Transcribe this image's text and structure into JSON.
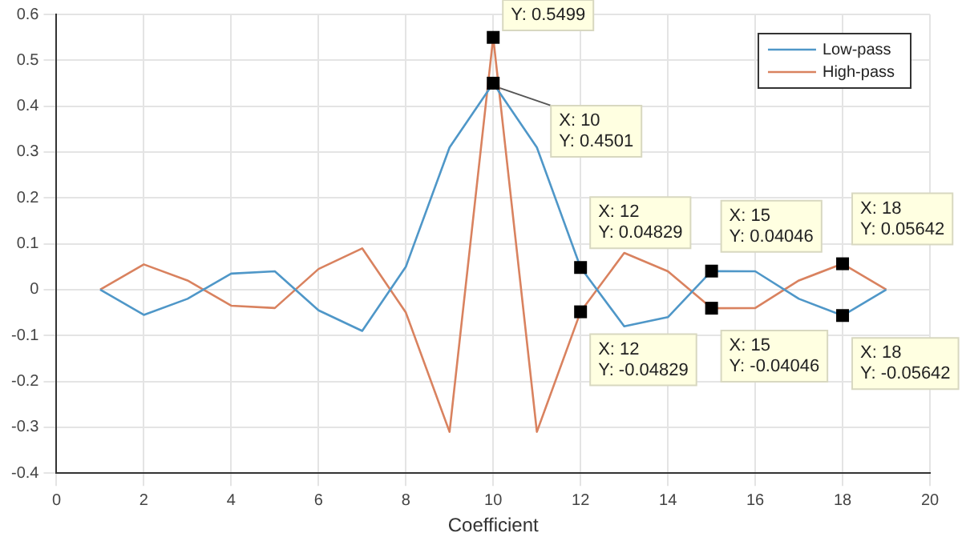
{
  "chart_data": {
    "type": "line",
    "xlabel": "Coefficient",
    "x": [
      1,
      2,
      3,
      4,
      5,
      6,
      7,
      8,
      9,
      10,
      11,
      12,
      13,
      14,
      15,
      16,
      17,
      18,
      19
    ],
    "series": [
      {
        "name": "Low-pass",
        "color": "#4f97c8",
        "values": [
          0,
          -0.055,
          -0.02,
          0.035,
          0.04,
          -0.045,
          -0.09,
          0.05,
          0.31,
          0.4501,
          0.31,
          0.04829,
          -0.08,
          -0.06,
          0.04046,
          0.04,
          -0.02,
          -0.05642,
          0
        ]
      },
      {
        "name": "High-pass",
        "color": "#d9825f",
        "values": [
          0,
          0.055,
          0.02,
          -0.035,
          -0.04,
          0.045,
          0.09,
          -0.05,
          -0.31,
          0.5499,
          -0.31,
          -0.04829,
          0.08,
          0.04,
          -0.04046,
          -0.04,
          0.02,
          0.05642,
          0
        ]
      }
    ],
    "xlim": [
      0,
      20
    ],
    "xticks": [
      0,
      2,
      4,
      6,
      8,
      10,
      12,
      14,
      16,
      18,
      20
    ],
    "ylim": [
      -0.4,
      0.6
    ],
    "yticks": [
      -0.4,
      -0.3,
      -0.2,
      -0.1,
      0,
      0.1,
      0.2,
      0.3,
      0.4,
      0.5,
      0.6
    ],
    "grid": true,
    "legend": "top right",
    "marker": "none",
    "line_style": "solid",
    "annotations": [
      {
        "text": "Y: 0.5499",
        "x": 10,
        "y": 0.5499
      },
      {
        "text": "X: 10\nY: 0.4501",
        "x": 10,
        "y": 0.4501
      },
      {
        "text": "X: 12\nY: 0.04829",
        "x": 12,
        "y": 0.04829
      },
      {
        "text": "X: 12\nY: -0.04829",
        "x": 12,
        "y": -0.04829
      },
      {
        "text": "X: 15\nY: 0.04046",
        "x": 15,
        "y": 0.04046
      },
      {
        "text": "X: 15\nY: -0.04046",
        "x": 15,
        "y": -0.04046
      },
      {
        "text": "X: 18\nY: 0.05642",
        "x": 18,
        "y": 0.05642
      },
      {
        "text": "X: 18\nY: -0.05642",
        "x": 18,
        "y": -0.05642
      }
    ]
  }
}
